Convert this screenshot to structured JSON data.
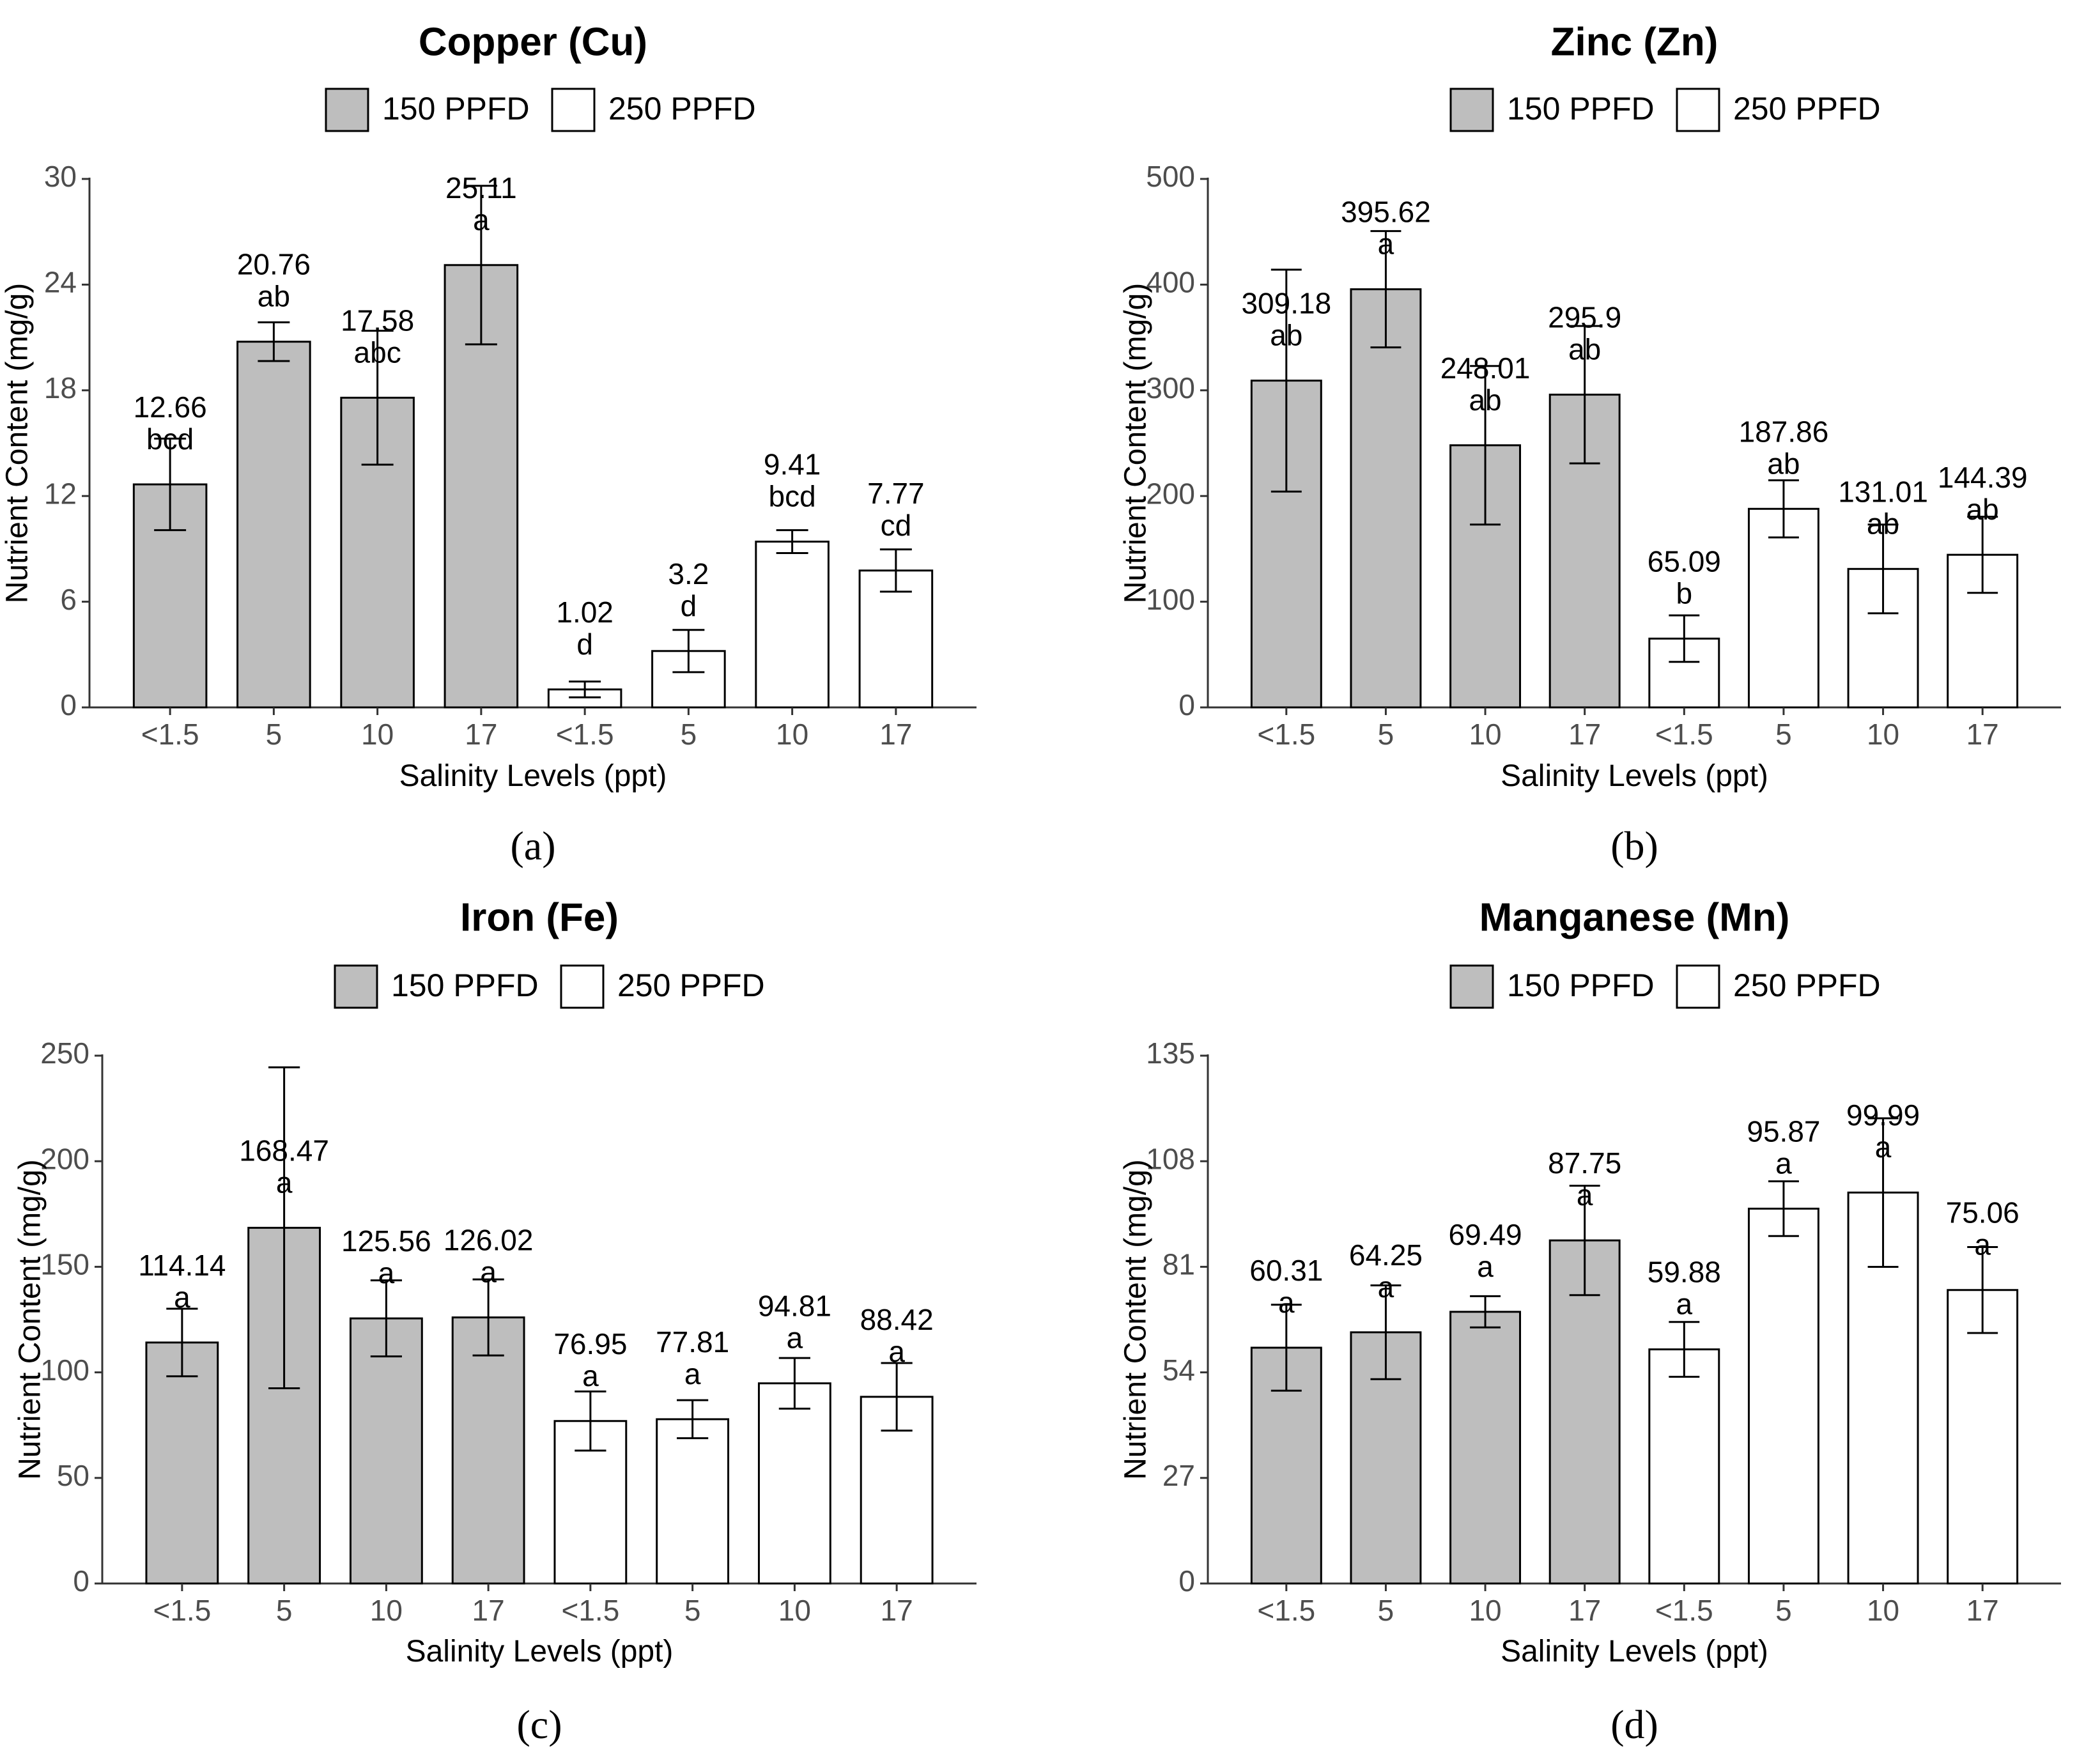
{
  "colors": {
    "fill_150": "#bebebe",
    "fill_250": "#ffffff",
    "stroke": "#000000",
    "axis": "#333333",
    "tick_text": "#4d4d4d"
  },
  "chart_data": [
    {
      "type": "bar",
      "panel_label": "(a)",
      "title": "Copper (Cu)",
      "xlabel": "Salinity Levels (ppt)",
      "ylabel": "Nutrient Content (mg/g)",
      "ylim": [
        0,
        30
      ],
      "yticks": [
        "0",
        "6",
        "12",
        "18",
        "24",
        "30"
      ],
      "legend": [
        "150 PPFD",
        "250 PPFD"
      ],
      "legend_position": "top",
      "grid": false,
      "categories": [
        "<1.5",
        "5",
        "10",
        "17",
        "<1.5",
        "5",
        "10",
        "17"
      ],
      "groups": [
        "150 PPFD",
        "150 PPFD",
        "150 PPFD",
        "150 PPFD",
        "250 PPFD",
        "250 PPFD",
        "250 PPFD",
        "250 PPFD"
      ],
      "values": [
        12.66,
        20.76,
        17.58,
        25.11,
        1.02,
        3.2,
        9.41,
        7.77
      ],
      "value_labels": [
        "12.66",
        "20.76",
        "17.58",
        "25.11",
        "1.02",
        "3.2",
        "9.41",
        "7.77"
      ],
      "errors": [
        2.6,
        1.1,
        3.8,
        4.5,
        0.45,
        1.2,
        0.65,
        1.2
      ],
      "letters": [
        "bcd",
        "ab",
        "abc",
        "a",
        "d",
        "d",
        "bcd",
        "cd"
      ]
    },
    {
      "type": "bar",
      "panel_label": "(b)",
      "title": "Zinc (Zn)",
      "xlabel": "Salinity Levels (ppt)",
      "ylabel": "Nutrient Content (mg/g)",
      "ylim": [
        0,
        500
      ],
      "yticks": [
        "0",
        "100",
        "200",
        "300",
        "400",
        "500"
      ],
      "legend": [
        "150 PPFD",
        "250 PPFD"
      ],
      "legend_position": "top",
      "grid": false,
      "categories": [
        "<1.5",
        "5",
        "10",
        "17",
        "<1.5",
        "5",
        "10",
        "17"
      ],
      "groups": [
        "150 PPFD",
        "150 PPFD",
        "150 PPFD",
        "150 PPFD",
        "250 PPFD",
        "250 PPFD",
        "250 PPFD",
        "250 PPFD"
      ],
      "values": [
        309.18,
        395.62,
        248.01,
        295.9,
        65.09,
        187.86,
        131.01,
        144.39
      ],
      "value_labels": [
        "309.18",
        "395.62",
        "248.01",
        "295.9",
        "65.09",
        "187.86",
        "131.01",
        "144.39"
      ],
      "errors": [
        105,
        55,
        75,
        65,
        22,
        27,
        42,
        36
      ],
      "letters": [
        "ab",
        "a",
        "ab",
        "ab",
        "b",
        "ab",
        "ab",
        "ab"
      ]
    },
    {
      "type": "bar",
      "panel_label": "(c)",
      "title": "Iron (Fe)",
      "xlabel": "Salinity Levels (ppt)",
      "ylabel": "Nutrient Content (mg/g)",
      "ylim": [
        0,
        250
      ],
      "yticks": [
        "0",
        "50",
        "100",
        "150",
        "200",
        "250"
      ],
      "legend": [
        "150 PPFD",
        "250 PPFD"
      ],
      "legend_position": "top",
      "grid": false,
      "categories": [
        "<1.5",
        "5",
        "10",
        "17",
        "<1.5",
        "5",
        "10",
        "17"
      ],
      "groups": [
        "150 PPFD",
        "150 PPFD",
        "150 PPFD",
        "150 PPFD",
        "250 PPFD",
        "250 PPFD",
        "250 PPFD",
        "250 PPFD"
      ],
      "values": [
        114.14,
        168.47,
        125.56,
        126.02,
        76.95,
        77.81,
        94.81,
        88.42
      ],
      "value_labels": [
        "114.14",
        "168.47",
        "125.56",
        "126.02",
        "76.95",
        "77.81",
        "94.81",
        "88.42"
      ],
      "errors": [
        16,
        76,
        18,
        18,
        14,
        9,
        12,
        16
      ],
      "letters": [
        "a",
        "a",
        "a",
        "a",
        "a",
        "a",
        "a",
        "a"
      ]
    },
    {
      "type": "bar",
      "panel_label": "(d)",
      "title": "Manganese (Mn)",
      "xlabel": "Salinity Levels (ppt)",
      "ylabel": "Nutrient Content (mg/g)",
      "ylim": [
        0,
        135
      ],
      "yticks": [
        "0",
        "27",
        "54",
        "81",
        "108",
        "135"
      ],
      "legend": [
        "150 PPFD",
        "250 PPFD"
      ],
      "legend_position": "top",
      "grid": false,
      "categories": [
        "<1.5",
        "5",
        "10",
        "17",
        "<1.5",
        "5",
        "10",
        "17"
      ],
      "groups": [
        "150 PPFD",
        "150 PPFD",
        "150 PPFD",
        "150 PPFD",
        "250 PPFD",
        "250 PPFD",
        "250 PPFD",
        "250 PPFD"
      ],
      "values": [
        60.31,
        64.25,
        69.49,
        87.75,
        59.88,
        95.87,
        99.99,
        75.06
      ],
      "value_labels": [
        "60.31",
        "64.25",
        "69.49",
        "87.75",
        "59.88",
        "95.87",
        "99.99",
        "75.06"
      ],
      "errors": [
        11,
        12,
        4,
        14,
        7,
        7,
        19,
        11
      ],
      "letters": [
        "a",
        "a",
        "a",
        "a",
        "a",
        "a",
        "a",
        "a"
      ]
    }
  ]
}
